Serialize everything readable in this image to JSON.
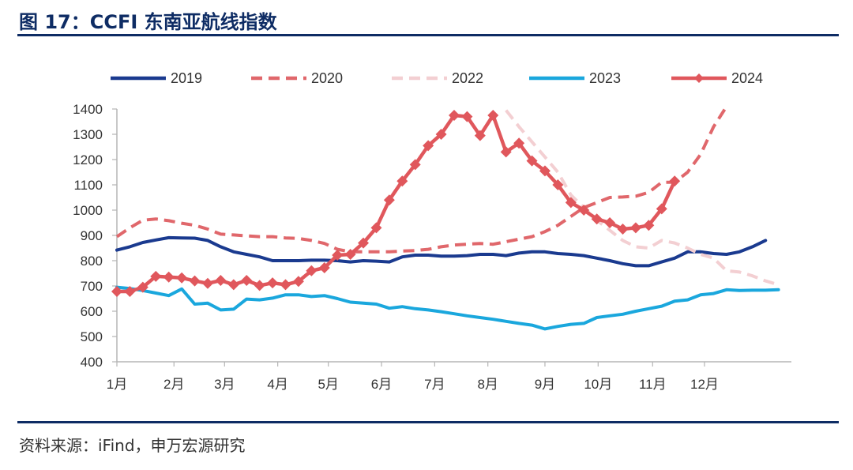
{
  "header": {
    "title": "图 17：CCFI 东南亚航线指数"
  },
  "footer": {
    "source": "资料来源：iFind，申万宏源研究"
  },
  "chart_data": {
    "type": "line",
    "title": "",
    "xlabel": "",
    "ylabel": "",
    "ylim": [
      400,
      1400
    ],
    "yticks": [
      400,
      500,
      600,
      700,
      800,
      900,
      1000,
      1100,
      1200,
      1300,
      1400
    ],
    "x_range": [
      0,
      52
    ],
    "month_labels": [
      "1月",
      "2月",
      "3月",
      "4月",
      "5月",
      "6月",
      "7月",
      "8月",
      "9月",
      "10月",
      "11月",
      "12月"
    ],
    "month_week_positions": [
      0,
      4.4,
      8.3,
      12.4,
      16.3,
      20.4,
      24.5,
      28.6,
      33.0,
      37.1,
      41.3,
      45.3
    ],
    "grid": false,
    "legend_position": "top",
    "colors": {
      "2019": "#1a3a8f",
      "2020": "#e0676b",
      "2022": "#f3cfd2",
      "2023": "#1aa7dd",
      "2024": "#e0575c"
    },
    "series": [
      {
        "name": "2019",
        "style": "solid",
        "marker": false,
        "points": [
          [
            0,
            842
          ],
          [
            1,
            855
          ],
          [
            2,
            872
          ],
          [
            3,
            882
          ],
          [
            4,
            891
          ],
          [
            5,
            890
          ],
          [
            6,
            889
          ],
          [
            7,
            880
          ],
          [
            8,
            855
          ],
          [
            9,
            835
          ],
          [
            10,
            825
          ],
          [
            11,
            815
          ],
          [
            12,
            800
          ],
          [
            13,
            800
          ],
          [
            14,
            800
          ],
          [
            15,
            802
          ],
          [
            16,
            802
          ],
          [
            17,
            800
          ],
          [
            18,
            795
          ],
          [
            19,
            800
          ],
          [
            20,
            798
          ],
          [
            21,
            795
          ],
          [
            22,
            815
          ],
          [
            23,
            822
          ],
          [
            24,
            822
          ],
          [
            25,
            818
          ],
          [
            26,
            818
          ],
          [
            27,
            820
          ],
          [
            28,
            825
          ],
          [
            29,
            825
          ],
          [
            30,
            820
          ],
          [
            31,
            830
          ],
          [
            32,
            835
          ],
          [
            33,
            835
          ],
          [
            34,
            828
          ],
          [
            35,
            825
          ],
          [
            36,
            820
          ],
          [
            37,
            810
          ],
          [
            38,
            800
          ],
          [
            39,
            788
          ],
          [
            40,
            780
          ],
          [
            41,
            780
          ],
          [
            42,
            795
          ],
          [
            43,
            810
          ],
          [
            44,
            835
          ],
          [
            45,
            835
          ],
          [
            46,
            828
          ],
          [
            47,
            825
          ],
          [
            48,
            835
          ],
          [
            49,
            855
          ],
          [
            50,
            880
          ]
        ]
      },
      {
        "name": "2020",
        "style": "dashed",
        "marker": false,
        "points": [
          [
            0,
            895
          ],
          [
            1,
            930
          ],
          [
            2,
            960
          ],
          [
            3,
            965
          ],
          [
            4,
            958
          ],
          [
            5,
            948
          ],
          [
            6,
            940
          ],
          [
            7,
            925
          ],
          [
            8,
            905
          ],
          [
            9,
            902
          ],
          [
            10,
            898
          ],
          [
            11,
            895
          ],
          [
            12,
            895
          ],
          [
            13,
            890
          ],
          [
            14,
            888
          ],
          [
            15,
            880
          ],
          [
            16,
            868
          ],
          [
            17,
            845
          ],
          [
            18,
            835
          ],
          [
            19,
            835
          ],
          [
            20,
            835
          ],
          [
            21,
            835
          ],
          [
            22,
            838
          ],
          [
            23,
            840
          ],
          [
            24,
            845
          ],
          [
            25,
            855
          ],
          [
            26,
            862
          ],
          [
            27,
            865
          ],
          [
            28,
            868
          ],
          [
            29,
            865
          ],
          [
            30,
            875
          ],
          [
            31,
            885
          ],
          [
            32,
            895
          ],
          [
            33,
            915
          ],
          [
            34,
            940
          ],
          [
            35,
            975
          ],
          [
            36,
            1010
          ],
          [
            37,
            1030
          ],
          [
            38,
            1050
          ],
          [
            39,
            1052
          ],
          [
            40,
            1055
          ],
          [
            41,
            1070
          ],
          [
            42,
            1110
          ],
          [
            43,
            1110
          ],
          [
            44,
            1150
          ],
          [
            45,
            1220
          ],
          [
            46,
            1330
          ],
          [
            47,
            1410
          ]
        ]
      },
      {
        "name": "2022",
        "style": "dashed",
        "marker": false,
        "points": [
          [
            30,
            1395
          ],
          [
            31,
            1330
          ],
          [
            32,
            1270
          ],
          [
            33,
            1210
          ],
          [
            34,
            1150
          ],
          [
            35,
            1060
          ],
          [
            36,
            1010
          ],
          [
            37,
            960
          ],
          [
            38,
            920
          ],
          [
            39,
            880
          ],
          [
            40,
            855
          ],
          [
            41,
            850
          ],
          [
            42,
            880
          ],
          [
            43,
            870
          ],
          [
            44,
            850
          ],
          [
            45,
            825
          ],
          [
            46,
            810
          ],
          [
            47,
            760
          ],
          [
            48,
            755
          ],
          [
            49,
            740
          ],
          [
            50,
            720
          ],
          [
            51,
            705
          ]
        ]
      },
      {
        "name": "2023",
        "style": "solid",
        "marker": false,
        "points": [
          [
            0,
            695
          ],
          [
            1,
            690
          ],
          [
            2,
            682
          ],
          [
            3,
            672
          ],
          [
            4,
            662
          ],
          [
            5,
            688
          ],
          [
            6,
            628
          ],
          [
            7,
            632
          ],
          [
            8,
            605
          ],
          [
            9,
            608
          ],
          [
            10,
            648
          ],
          [
            11,
            645
          ],
          [
            12,
            652
          ],
          [
            13,
            665
          ],
          [
            14,
            665
          ],
          [
            15,
            658
          ],
          [
            16,
            662
          ],
          [
            17,
            650
          ],
          [
            18,
            636
          ],
          [
            19,
            632
          ],
          [
            20,
            628
          ],
          [
            21,
            612
          ],
          [
            22,
            618
          ],
          [
            23,
            610
          ],
          [
            24,
            605
          ],
          [
            25,
            598
          ],
          [
            26,
            590
          ],
          [
            27,
            582
          ],
          [
            28,
            575
          ],
          [
            29,
            568
          ],
          [
            30,
            560
          ],
          [
            31,
            552
          ],
          [
            32,
            545
          ],
          [
            33,
            530
          ],
          [
            34,
            540
          ],
          [
            35,
            548
          ],
          [
            36,
            552
          ],
          [
            37,
            575
          ],
          [
            38,
            582
          ],
          [
            39,
            588
          ],
          [
            40,
            600
          ],
          [
            41,
            610
          ],
          [
            42,
            620
          ],
          [
            43,
            640
          ],
          [
            44,
            645
          ],
          [
            45,
            665
          ],
          [
            46,
            670
          ],
          [
            47,
            685
          ],
          [
            48,
            682
          ],
          [
            49,
            683
          ],
          [
            50,
            683
          ],
          [
            51,
            685
          ]
        ]
      },
      {
        "name": "2024",
        "style": "solid",
        "marker": true,
        "points": [
          [
            0,
            678
          ],
          [
            1,
            678
          ],
          [
            2,
            695
          ],
          [
            3,
            738
          ],
          [
            4,
            735
          ],
          [
            5,
            732
          ],
          [
            6,
            720
          ],
          [
            7,
            710
          ],
          [
            8,
            722
          ],
          [
            9,
            705
          ],
          [
            10,
            722
          ],
          [
            11,
            702
          ],
          [
            12,
            712
          ],
          [
            13,
            705
          ],
          [
            14,
            718
          ],
          [
            15,
            760
          ],
          [
            16,
            772
          ],
          [
            17,
            822
          ],
          [
            18,
            825
          ],
          [
            19,
            870
          ],
          [
            20,
            930
          ],
          [
            21,
            1040
          ],
          [
            22,
            1115
          ],
          [
            23,
            1180
          ],
          [
            24,
            1255
          ],
          [
            25,
            1300
          ],
          [
            26,
            1375
          ],
          [
            27,
            1370
          ],
          [
            28,
            1295
          ],
          [
            29,
            1375
          ],
          [
            30,
            1230
          ],
          [
            31,
            1265
          ],
          [
            32,
            1195
          ],
          [
            33,
            1155
          ],
          [
            34,
            1100
          ],
          [
            35,
            1030
          ],
          [
            36,
            1000
          ],
          [
            37,
            965
          ],
          [
            38,
            950
          ],
          [
            39,
            925
          ],
          [
            40,
            930
          ],
          [
            41,
            940
          ],
          [
            42,
            1005
          ],
          [
            43,
            1115
          ]
        ]
      }
    ]
  }
}
